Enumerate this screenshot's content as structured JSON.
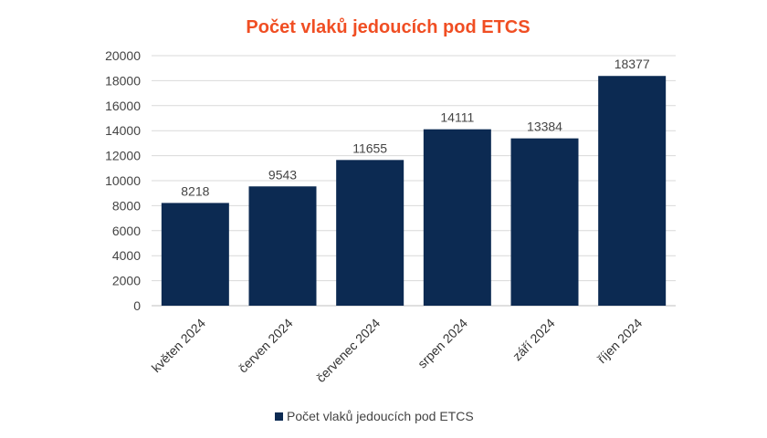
{
  "chart_data": {
    "type": "bar",
    "title": "Počet vlaků jedoucích pod ETCS",
    "xlabel": "",
    "ylabel": "",
    "categories": [
      "květen 2024",
      "červen 2024",
      "červenec 2024",
      "srpen 2024",
      "září 2024",
      "říjen 2024"
    ],
    "series": [
      {
        "name": "Počet vlaků jedoucích pod ETCS",
        "values": [
          8218,
          9543,
          11655,
          14111,
          13384,
          18377
        ]
      }
    ],
    "ylim": [
      0,
      20000
    ],
    "yticks": [
      "0",
      "2000",
      "4000",
      "6000",
      "8000",
      "10000",
      "12000",
      "14000",
      "16000",
      "18000",
      "20000"
    ],
    "grid": true,
    "legend_position": "bottom",
    "data_labels": true
  },
  "colors": {
    "title": "#f04e23",
    "bar": "#0c2a52",
    "grid": "#d9d9d9",
    "axis": "#bfbfbf"
  }
}
